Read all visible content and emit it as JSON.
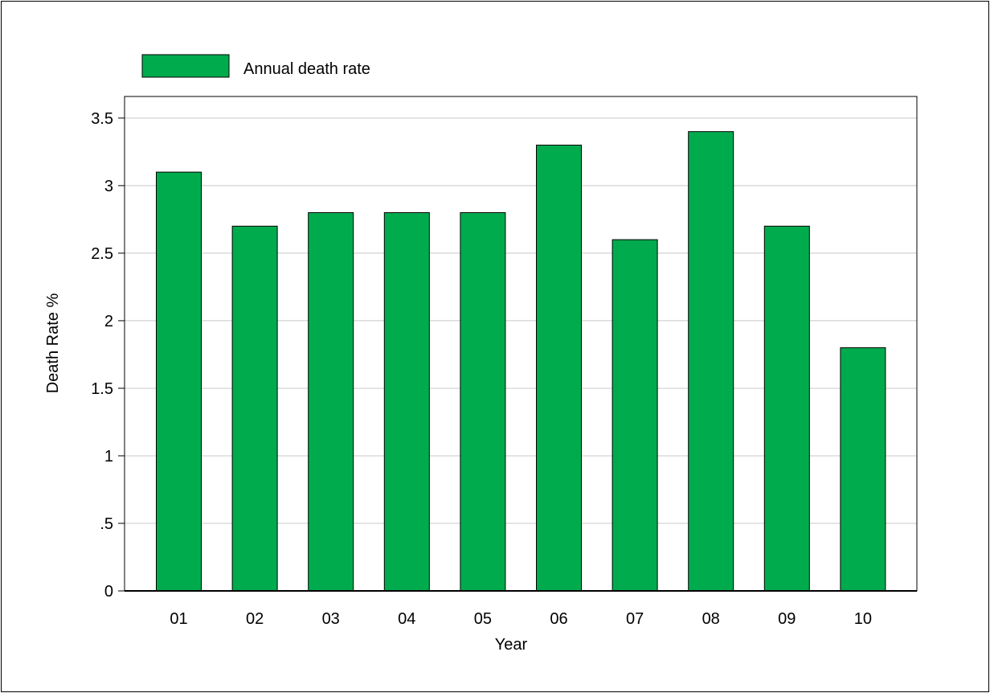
{
  "chart_data": {
    "type": "bar",
    "title": "",
    "xlabel": "Year",
    "ylabel": "Death Rate %",
    "categories": [
      "01",
      "02",
      "03",
      "04",
      "05",
      "06",
      "07",
      "08",
      "09",
      "10"
    ],
    "series": [
      {
        "name": "Annual death rate",
        "values": [
          3.1,
          2.7,
          2.8,
          2.8,
          2.8,
          3.3,
          2.6,
          3.4,
          2.7,
          1.8
        ]
      }
    ],
    "ylim": [
      0,
      3.66
    ],
    "yticks": [
      {
        "value": 0,
        "label": "0"
      },
      {
        "value": 0.5,
        "label": ".5"
      },
      {
        "value": 1,
        "label": "1"
      },
      {
        "value": 1.5,
        "label": "1.5"
      },
      {
        "value": 2,
        "label": "2"
      },
      {
        "value": 2.5,
        "label": "2.5"
      },
      {
        "value": 3,
        "label": "3"
      },
      {
        "value": 3.5,
        "label": "3.5"
      }
    ],
    "grid": "horizontal",
    "legend": "top-left",
    "colors": {
      "bar": "#00ab4e",
      "grid": "#c8c8c8",
      "axis": "#000000"
    }
  }
}
